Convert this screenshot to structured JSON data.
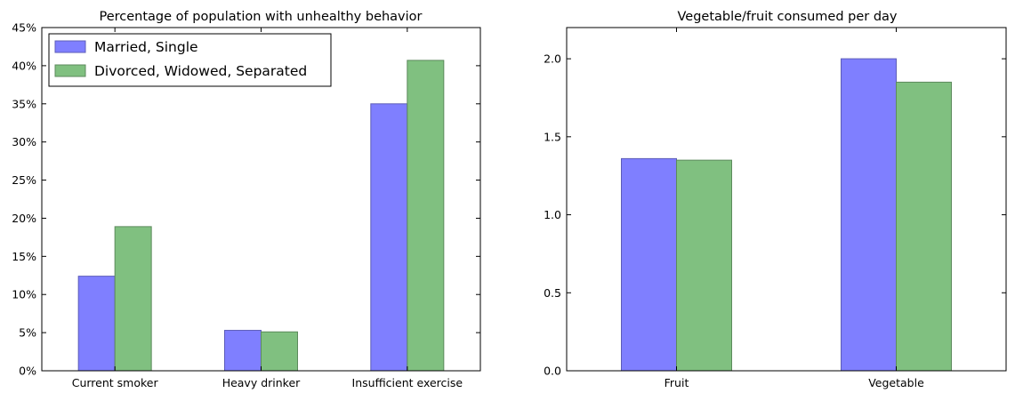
{
  "colors": {
    "series_1": "#7f7fff",
    "series_1_edge": "#5c5cb8",
    "series_2": "#80c080",
    "series_2_edge": "#5c8a5c"
  },
  "chart_data": [
    {
      "type": "bar",
      "title": "Percentage of population with unhealthy behavior",
      "categories": [
        "Current smoker",
        "Heavy drinker",
        "Insufficient exercise"
      ],
      "series": [
        {
          "name": "Married, Single",
          "values": [
            12.4,
            5.3,
            35.0
          ]
        },
        {
          "name": "Divorced, Widowed, Separated",
          "values": [
            18.9,
            5.1,
            40.7
          ]
        }
      ],
      "ylim": [
        0,
        45
      ],
      "yticks": [
        0,
        5,
        10,
        15,
        20,
        25,
        30,
        35,
        40,
        45
      ],
      "ytick_labels": [
        "0%",
        "5%",
        "10%",
        "15%",
        "20%",
        "25%",
        "30%",
        "35%",
        "40%",
        "45%"
      ],
      "legend": "top-left",
      "grid": false
    },
    {
      "type": "bar",
      "title": "Vegetable/fruit consumed per day",
      "categories": [
        "Fruit",
        "Vegetable"
      ],
      "series": [
        {
          "values": [
            1.36,
            2.0
          ]
        },
        {
          "values": [
            1.35,
            1.85
          ]
        }
      ],
      "ylim": [
        0,
        2.2
      ],
      "yticks": [
        0,
        0.5,
        1.0,
        1.5,
        2.0
      ],
      "ytick_labels": [
        "0.0",
        "0.5",
        "1.0",
        "1.5",
        "2.0"
      ],
      "grid": false
    }
  ]
}
